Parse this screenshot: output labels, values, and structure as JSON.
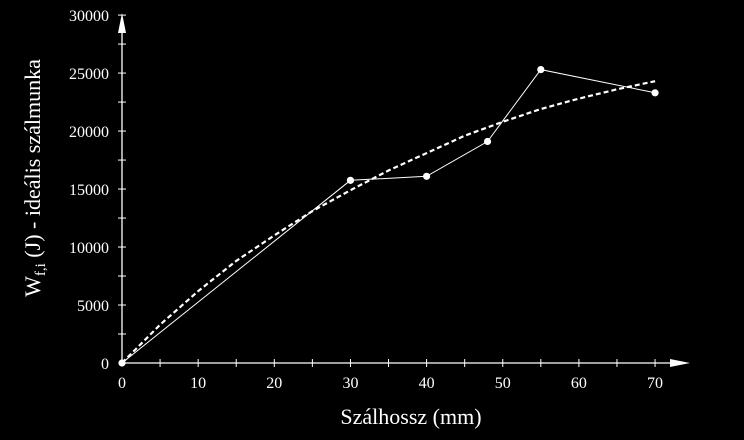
{
  "chart_data": {
    "type": "line",
    "xlabel": "Szálhossz (mm)",
    "ylabel": {
      "main": "W",
      "subscript": "f,i",
      "rest": " (J) - ideális szálmunka"
    },
    "xlim": [
      0,
      75
    ],
    "ylim": [
      0,
      30000
    ],
    "x_ticks": [
      0,
      10,
      20,
      30,
      40,
      50,
      60,
      70
    ],
    "y_ticks": [
      0,
      5000,
      10000,
      15000,
      20000,
      25000,
      30000
    ],
    "x_tick_labels": [
      "0",
      "10",
      "20",
      "30",
      "40",
      "50",
      "60",
      "70"
    ],
    "y_tick_labels": [
      "0",
      "5000",
      "10000",
      "15000",
      "20000",
      "25000",
      "30000"
    ],
    "grid": false,
    "series": [
      {
        "style": "solid-with-markers",
        "color": "#ffffff",
        "x": [
          0,
          30,
          40,
          48,
          55,
          70
        ],
        "y": [
          0,
          15750,
          16100,
          19100,
          25300,
          23300
        ]
      },
      {
        "style": "dashed-trend",
        "color": "#ffffff",
        "x": [
          0,
          5,
          10,
          15,
          20,
          25,
          30,
          35,
          40,
          45,
          50,
          55,
          60,
          65,
          70
        ],
        "y": [
          0,
          3300,
          6200,
          8800,
          11000,
          13100,
          14900,
          16600,
          18100,
          19600,
          20800,
          21900,
          22800,
          23600,
          24300
        ]
      }
    ]
  }
}
